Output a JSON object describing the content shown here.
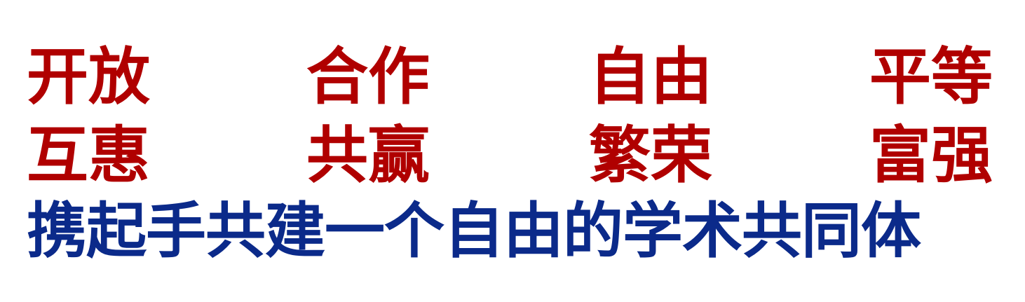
{
  "colors": {
    "values_text": "#b00000",
    "slogan_text": "#0b2a8a",
    "background": "#ffffff"
  },
  "values": {
    "row1": [
      "开放",
      "合作",
      "自由",
      "平等"
    ],
    "row2": [
      "互惠",
      "共赢",
      "繁荣",
      "富强"
    ]
  },
  "slogan": "携起手共建一个自由的学术共同体"
}
